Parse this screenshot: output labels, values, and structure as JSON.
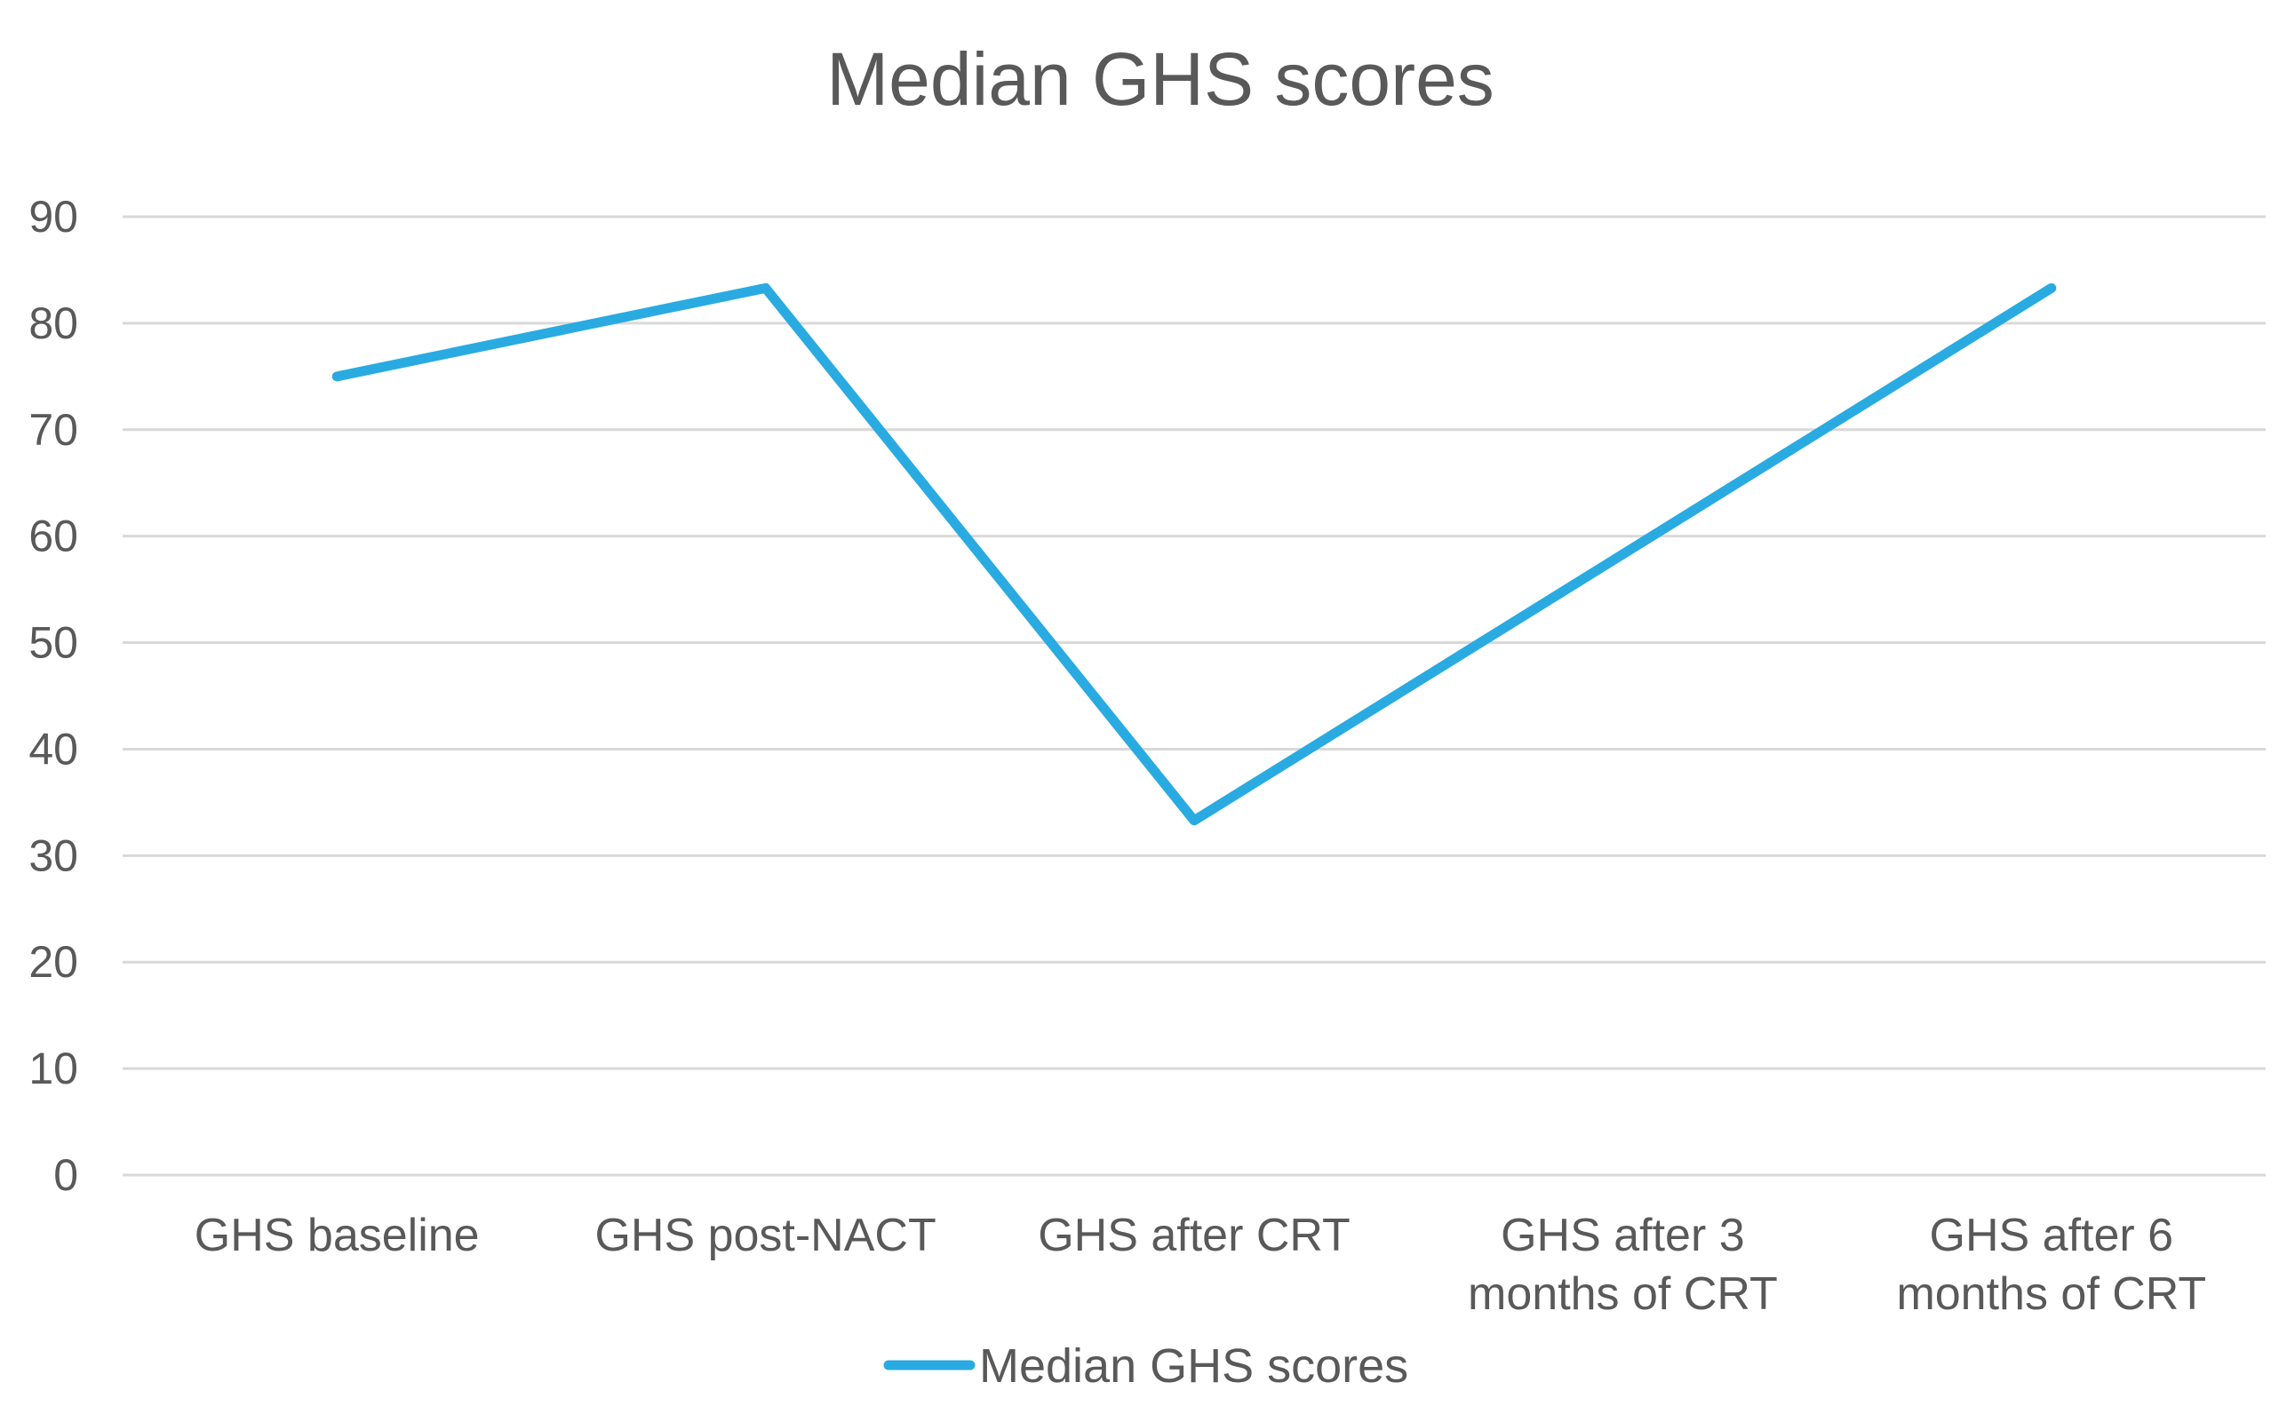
{
  "chart_data": {
    "type": "line",
    "title": "Median GHS scores",
    "categories": [
      [
        "GHS baseline"
      ],
      [
        "GHS post-NACT"
      ],
      [
        "GHS after CRT"
      ],
      [
        "GHS after 3",
        "months of CRT"
      ],
      [
        "GHS after 6",
        "months of CRT"
      ]
    ],
    "series": [
      {
        "name": "Median GHS scores",
        "values": [
          75,
          83.3,
          33.3,
          58.3,
          83.3
        ],
        "color": "#29ABE2"
      }
    ],
    "ylim": [
      0,
      90
    ],
    "yticks": [
      "0",
      "10",
      "20",
      "30",
      "40",
      "50",
      "60",
      "70",
      "80",
      "90"
    ],
    "grid": true,
    "legend": "bottom"
  }
}
